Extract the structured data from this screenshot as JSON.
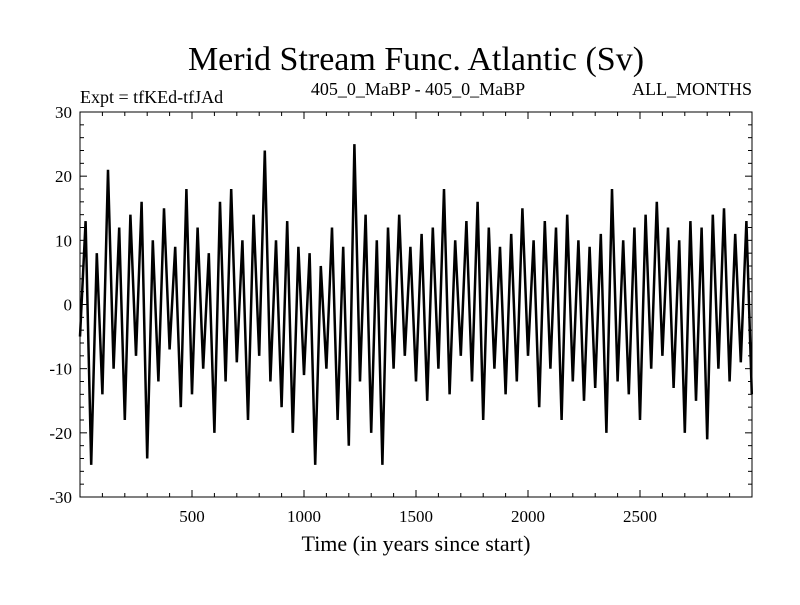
{
  "chart_data": {
    "type": "line",
    "title": "Merid Stream Func. Atlantic (Sv)",
    "subtitle_left": "Expt = tfKEd-tfJAd",
    "subtitle_center": "405_0_MaBP - 405_0_MaBP",
    "subtitle_right": "ALL_MONTHS",
    "xlabel": "Time (in years since start)",
    "ylabel": "",
    "xlim": [
      0,
      3000
    ],
    "ylim": [
      -30,
      30
    ],
    "xticks": [
      500,
      1000,
      1500,
      2000,
      2500
    ],
    "yticks": [
      -30,
      -20,
      -10,
      0,
      10,
      20,
      30
    ],
    "ytick_labels": [
      "-30",
      "-20",
      "-10",
      "0",
      "10",
      "20",
      "30"
    ],
    "grid": false,
    "series": [
      {
        "color": "#000000",
        "x": [
          0,
          25,
          50,
          75,
          100,
          125,
          150,
          175,
          200,
          225,
          250,
          275,
          300,
          325,
          350,
          375,
          400,
          425,
          450,
          475,
          500,
          525,
          550,
          575,
          600,
          625,
          650,
          675,
          700,
          725,
          750,
          775,
          800,
          825,
          850,
          875,
          900,
          925,
          950,
          975,
          1000,
          1025,
          1050,
          1075,
          1100,
          1125,
          1150,
          1175,
          1200,
          1225,
          1250,
          1275,
          1300,
          1325,
          1350,
          1375,
          1400,
          1425,
          1450,
          1475,
          1500,
          1525,
          1550,
          1575,
          1600,
          1625,
          1650,
          1675,
          1700,
          1725,
          1750,
          1775,
          1800,
          1825,
          1850,
          1875,
          1900,
          1925,
          1950,
          1975,
          2000,
          2025,
          2050,
          2075,
          2100,
          2125,
          2150,
          2175,
          2200,
          2225,
          2250,
          2275,
          2300,
          2325,
          2350,
          2375,
          2400,
          2425,
          2450,
          2475,
          2500,
          2525,
          2550,
          2575,
          2600,
          2625,
          2650,
          2675,
          2700,
          2725,
          2750,
          2775,
          2800,
          2825,
          2850,
          2875,
          2900,
          2925,
          2950,
          2975,
          2999
        ],
        "y": [
          -5,
          13,
          -25,
          8,
          -14,
          21,
          -10,
          12,
          -18,
          14,
          -8,
          16,
          -24,
          10,
          -12,
          15,
          -7,
          9,
          -16,
          18,
          -14,
          12,
          -10,
          8,
          -20,
          16,
          -12,
          18,
          -9,
          10,
          -18,
          14,
          -8,
          24,
          -12,
          10,
          -16,
          13,
          -20,
          9,
          -11,
          8,
          -25,
          6,
          -10,
          12,
          -18,
          9,
          -22,
          25,
          -12,
          14,
          -20,
          10,
          -25,
          12,
          -10,
          14,
          -8,
          9,
          -12,
          11,
          -15,
          12,
          -10,
          18,
          -14,
          10,
          -8,
          13,
          -12,
          16,
          -18,
          12,
          -10,
          9,
          -14,
          11,
          -12,
          15,
          -8,
          10,
          -16,
          13,
          -10,
          12,
          -18,
          14,
          -12,
          10,
          -15,
          9,
          -13,
          11,
          -20,
          18,
          -12,
          10,
          -14,
          12,
          -18,
          14,
          -10,
          16,
          -8,
          12,
          -13,
          10,
          -20,
          13,
          -15,
          12,
          -21,
          14,
          -10,
          15,
          -12,
          11,
          -9,
          13,
          -14
        ]
      }
    ]
  }
}
